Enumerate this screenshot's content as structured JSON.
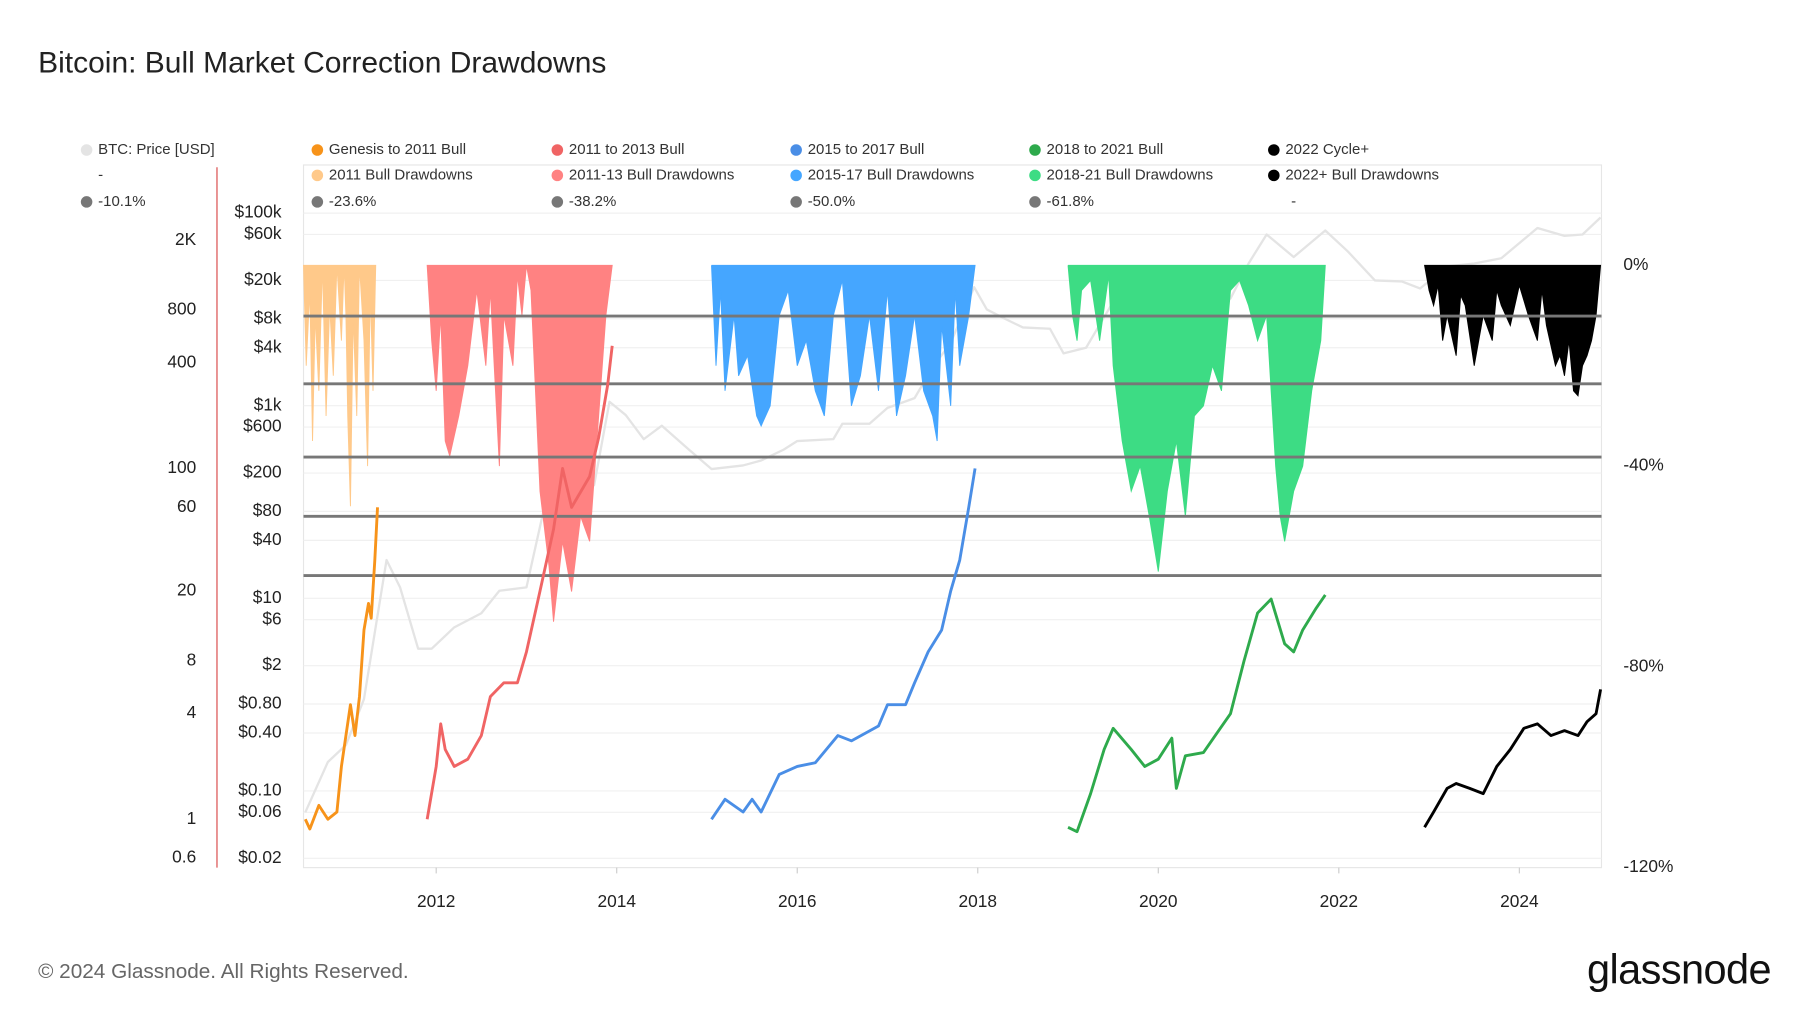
{
  "chart_data": {
    "type": "line",
    "title": "Bitcoin: Bull Market Correction Drawdowns",
    "footer": "© 2024 Glassnode. All Rights Reserved.",
    "brand": "glassnode",
    "log_scale": true,
    "grid": true,
    "xlim": [
      2010.53,
      2024.91
    ],
    "xticks": [
      2012,
      2014,
      2016,
      2018,
      2020,
      2022,
      2024
    ],
    "ylim": [
      0.016,
      316000
    ],
    "yticks": [
      {
        "value": 100000,
        "label": "$100k"
      },
      {
        "value": 60000,
        "label": "$60k"
      },
      {
        "value": 20000,
        "label": "$20k"
      },
      {
        "value": 8000,
        "label": "$8k"
      },
      {
        "value": 4000,
        "label": "$4k"
      },
      {
        "value": 1000,
        "label": "$1k"
      },
      {
        "value": 600,
        "label": "$600"
      },
      {
        "value": 200,
        "label": "$200"
      },
      {
        "value": 80,
        "label": "$80"
      },
      {
        "value": 40,
        "label": "$40"
      },
      {
        "value": 10,
        "label": "$10"
      },
      {
        "value": 6,
        "label": "$6"
      },
      {
        "value": 2,
        "label": "$2"
      },
      {
        "value": 0.8,
        "label": "$0.80"
      },
      {
        "value": 0.4,
        "label": "$0.40"
      },
      {
        "value": 0.1,
        "label": "$0.10"
      },
      {
        "value": 0.06,
        "label": "$0.06"
      },
      {
        "value": 0.02,
        "label": "$0.02"
      }
    ],
    "y3lim": [
      0.53,
      5370
    ],
    "y3ticks": [
      {
        "value": 2000,
        "label": "2K"
      },
      800,
      400,
      100,
      60,
      20,
      8,
      4,
      1,
      0.6
    ],
    "y3_axis_color": "#e06666",
    "y2lim": [
      -120,
      20
    ],
    "y2ticks": [
      {
        "value": 0,
        "label": "0%"
      },
      {
        "value": -40,
        "label": "-40%"
      },
      {
        "value": -80,
        "label": "-80%"
      },
      {
        "value": -120,
        "label": "-120%"
      }
    ],
    "reference_line_color": "#777777",
    "reference_lines": [
      {
        "value": -10.1,
        "label": "-10.1%"
      },
      {
        "value": -23.6,
        "label": "-23.6%"
      },
      {
        "value": -38.2,
        "label": "-38.2%"
      },
      {
        "value": -50.0,
        "label": "-50.0%"
      },
      {
        "value": -61.8,
        "label": "-61.8%"
      }
    ],
    "legend_placeholders": [
      "-",
      "-"
    ],
    "price_series": [
      {
        "name": "BTC: Price [USD]",
        "color": "#e4e4e4",
        "axis": "y",
        "x": [
          2010.55,
          2010.8,
          2011.0,
          2011.2,
          2011.45,
          2011.6,
          2011.8,
          2011.95,
          2012.2,
          2012.5,
          2012.7,
          2013.0,
          2013.2,
          2013.3,
          2013.5,
          2013.75,
          2013.92,
          2014.1,
          2014.3,
          2014.5,
          2014.8,
          2015.05,
          2015.4,
          2015.6,
          2015.85,
          2016.0,
          2016.4,
          2016.5,
          2016.8,
          2017.0,
          2017.3,
          2017.5,
          2017.7,
          2017.96,
          2018.1,
          2018.3,
          2018.5,
          2018.8,
          2018.95,
          2019.2,
          2019.5,
          2019.8,
          2020.0,
          2020.2,
          2020.5,
          2020.8,
          2021.0,
          2021.2,
          2021.5,
          2021.85,
          2022.1,
          2022.4,
          2022.7,
          2022.9,
          2023.2,
          2023.5,
          2023.8,
          2024.2,
          2024.5,
          2024.7,
          2024.9
        ],
        "values": [
          0.06,
          0.2,
          0.3,
          0.9,
          25,
          13,
          3,
          3,
          5,
          7,
          12,
          13,
          90,
          200,
          100,
          150,
          1100,
          800,
          450,
          620,
          350,
          220,
          240,
          270,
          350,
          430,
          450,
          650,
          650,
          950,
          1200,
          2500,
          4500,
          17000,
          10000,
          8000,
          6500,
          6300,
          3500,
          4000,
          12000,
          8000,
          7200,
          5000,
          9200,
          13000,
          30000,
          60000,
          35000,
          66000,
          40000,
          20000,
          19500,
          16500,
          28000,
          30000,
          34000,
          70000,
          58000,
          60000,
          90000
        ]
      }
    ],
    "cycle_series": [
      {
        "name": "Genesis to 2011 Bull",
        "color": "#f7931a",
        "axis": "y3",
        "x": [
          2010.55,
          2010.6,
          2010.7,
          2010.8,
          2010.9,
          2010.95,
          2011.0,
          2011.05,
          2011.1,
          2011.15,
          2011.2,
          2011.25,
          2011.28,
          2011.32,
          2011.35
        ],
        "values": [
          1,
          0.88,
          1.2,
          1,
          1.1,
          2,
          3,
          4.5,
          3,
          5,
          12,
          17,
          14,
          30,
          60
        ]
      },
      {
        "name": "2011 to 2013 Bull",
        "color": "#f06464",
        "axis": "y3",
        "x": [
          2011.9,
          2012.0,
          2012.05,
          2012.1,
          2012.2,
          2012.35,
          2012.5,
          2012.6,
          2012.75,
          2012.9,
          2013.0,
          2013.15,
          2013.3,
          2013.4,
          2013.5,
          2013.7,
          2013.8,
          2013.9,
          2013.95
        ],
        "values": [
          1,
          2,
          3.5,
          2.5,
          2,
          2.2,
          3,
          5,
          6,
          6,
          9,
          20,
          45,
          100,
          60,
          90,
          150,
          300,
          500
        ]
      },
      {
        "name": "2015 to 2017 Bull",
        "color": "#4a8ee6",
        "axis": "y3",
        "x": [
          2015.05,
          2015.2,
          2015.4,
          2015.5,
          2015.6,
          2015.8,
          2016.0,
          2016.2,
          2016.45,
          2016.6,
          2016.9,
          2017.0,
          2017.2,
          2017.3,
          2017.45,
          2017.6,
          2017.7,
          2017.8,
          2017.9,
          2017.97
        ],
        "values": [
          1,
          1.3,
          1.1,
          1.3,
          1.1,
          1.8,
          2,
          2.1,
          3,
          2.8,
          3.4,
          4.5,
          4.5,
          6,
          9,
          12,
          20,
          30,
          60,
          100
        ]
      },
      {
        "name": "2018 to 2021 Bull",
        "color": "#2eaa4c",
        "axis": "y3",
        "x": [
          2019.0,
          2019.1,
          2019.25,
          2019.4,
          2019.5,
          2019.7,
          2019.85,
          2020.0,
          2020.15,
          2020.2,
          2020.3,
          2020.5,
          2020.65,
          2020.8,
          2020.95,
          2021.1,
          2021.25,
          2021.4,
          2021.5,
          2021.6,
          2021.75,
          2021.85
        ],
        "values": [
          0.9,
          0.85,
          1.4,
          2.5,
          3.3,
          2.5,
          2,
          2.2,
          2.9,
          1.5,
          2.3,
          2.4,
          3.1,
          4,
          8,
          15,
          18,
          10,
          9,
          12,
          16,
          19
        ]
      },
      {
        "name": "2022 Cycle+",
        "color": "#000000",
        "axis": "y3",
        "x": [
          2022.95,
          2023.05,
          2023.2,
          2023.3,
          2023.45,
          2023.6,
          2023.75,
          2023.9,
          2024.05,
          2024.2,
          2024.35,
          2024.5,
          2024.65,
          2024.75,
          2024.85,
          2024.9
        ],
        "values": [
          0.9,
          1.1,
          1.5,
          1.6,
          1.5,
          1.4,
          2,
          2.5,
          3.3,
          3.5,
          3,
          3.2,
          3,
          3.6,
          4,
          5.5
        ]
      }
    ],
    "drawdown_series": [
      {
        "name": "2011 Bull Drawdowns",
        "color": "#ffc98a",
        "axis": "y2",
        "x": [
          2010.53,
          2010.56,
          2010.6,
          2010.63,
          2010.66,
          2010.7,
          2010.74,
          2010.78,
          2010.82,
          2010.86,
          2010.9,
          2010.95,
          2010.98,
          2011.0,
          2011.02,
          2011.05,
          2011.08,
          2011.12,
          2011.15,
          2011.2,
          2011.24,
          2011.27,
          2011.3,
          2011.33
        ],
        "values": [
          0,
          -20,
          -5,
          -35,
          -10,
          -25,
          0,
          -30,
          -8,
          -22,
          0,
          -15,
          0,
          -10,
          -30,
          -48,
          -10,
          -30,
          0,
          -15,
          -40,
          -5,
          -25,
          0
        ]
      },
      {
        "name": "2011-13 Bull Drawdowns",
        "color": "#ff8282",
        "axis": "y2",
        "x": [
          2011.9,
          2011.95,
          2012.0,
          2012.05,
          2012.1,
          2012.15,
          2012.25,
          2012.35,
          2012.45,
          2012.55,
          2012.6,
          2012.7,
          2012.75,
          2012.85,
          2012.9,
          2012.95,
          2013.0,
          2013.05,
          2013.15,
          2013.25,
          2013.3,
          2013.4,
          2013.5,
          2013.6,
          2013.7,
          2013.8,
          2013.88,
          2013.95
        ],
        "values": [
          0,
          -15,
          -25,
          -10,
          -35,
          -38,
          -30,
          -20,
          -5,
          -20,
          -5,
          -40,
          -10,
          -20,
          -2,
          -10,
          0,
          -5,
          -45,
          -60,
          -71,
          -55,
          -65,
          -50,
          -55,
          -30,
          -10,
          0
        ]
      },
      {
        "name": "2015-17 Bull Drawdowns",
        "color": "#45a6ff",
        "axis": "y2",
        "x": [
          2015.05,
          2015.1,
          2015.15,
          2015.2,
          2015.3,
          2015.35,
          2015.45,
          2015.55,
          2015.6,
          2015.7,
          2015.8,
          2015.9,
          2016.0,
          2016.1,
          2016.2,
          2016.3,
          2016.4,
          2016.5,
          2016.6,
          2016.7,
          2016.8,
          2016.9,
          2017.0,
          2017.1,
          2017.2,
          2017.3,
          2017.4,
          2017.5,
          2017.55,
          2017.6,
          2017.7,
          2017.75,
          2017.8,
          2017.9,
          2017.97
        ],
        "values": [
          0,
          -20,
          -5,
          -25,
          -10,
          -22,
          -18,
          -30,
          -32,
          -28,
          -10,
          -5,
          -20,
          -15,
          -25,
          -30,
          -10,
          -3,
          -28,
          -22,
          -10,
          -25,
          -5,
          -30,
          -22,
          -10,
          -25,
          -30,
          -35,
          -12,
          -28,
          -5,
          -20,
          -10,
          0
        ]
      },
      {
        "name": "2018-21 Bull Drawdowns",
        "color": "#3ddc84",
        "axis": "y2",
        "x": [
          2019.0,
          2019.05,
          2019.1,
          2019.15,
          2019.25,
          2019.35,
          2019.45,
          2019.5,
          2019.6,
          2019.7,
          2019.8,
          2019.9,
          2020.0,
          2020.1,
          2020.2,
          2020.3,
          2020.4,
          2020.5,
          2020.6,
          2020.7,
          2020.8,
          2020.9,
          2021.0,
          2021.1,
          2021.2,
          2021.3,
          2021.35,
          2021.4,
          2021.5,
          2021.6,
          2021.7,
          2021.8,
          2021.85
        ],
        "values": [
          0,
          -10,
          -15,
          -5,
          -3,
          -15,
          -2,
          -20,
          -35,
          -45,
          -40,
          -50,
          -61,
          -45,
          -35,
          -50,
          -30,
          -28,
          -20,
          -25,
          -5,
          -3,
          -8,
          -15,
          -10,
          -40,
          -50,
          -55,
          -45,
          -40,
          -25,
          -15,
          0
        ]
      },
      {
        "name": "2022+ Bull Drawdowns",
        "color": "#000000",
        "axis": "y2",
        "x": [
          2022.95,
          2023.0,
          2023.05,
          2023.1,
          2023.15,
          2023.2,
          2023.3,
          2023.35,
          2023.4,
          2023.5,
          2023.6,
          2023.7,
          2023.75,
          2023.8,
          2023.9,
          2024.0,
          2024.1,
          2024.2,
          2024.25,
          2024.3,
          2024.4,
          2024.45,
          2024.5,
          2024.55,
          2024.6,
          2024.65,
          2024.7,
          2024.75,
          2024.8,
          2024.85,
          2024.9
        ],
        "values": [
          0,
          -5,
          -8,
          -4,
          -15,
          -10,
          -18,
          -6,
          -8,
          -20,
          -10,
          -15,
          -5,
          -8,
          -12,
          -4,
          -10,
          -15,
          -5,
          -12,
          -20,
          -18,
          -22,
          -15,
          -25,
          -26,
          -20,
          -18,
          -15,
          -10,
          0
        ]
      }
    ]
  }
}
